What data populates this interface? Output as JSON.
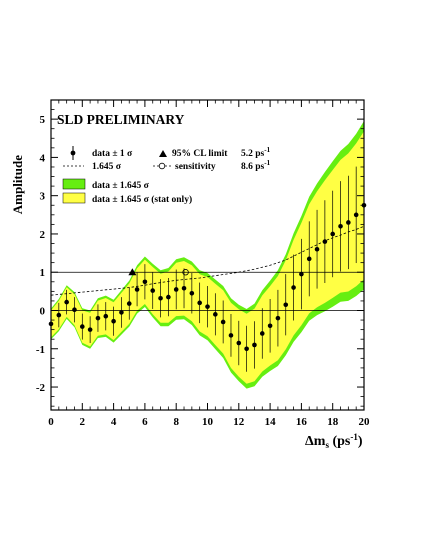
{
  "chart_data": {
    "type": "line",
    "title": "SLD PRELIMINARY",
    "xlabel": "Δm",
    "xlabel_sub": "s",
    "xlabel_unit": " (ps",
    "xlabel_sup": "-1",
    "xlabel_close": ")",
    "ylabel": "Amplitude",
    "xlim": [
      0,
      20
    ],
    "ylim": [
      -2.6,
      5.5
    ],
    "xticks": [
      0,
      2,
      4,
      6,
      8,
      10,
      12,
      14,
      16,
      18,
      20
    ],
    "yticks": [
      -2,
      -1,
      0,
      1,
      2,
      3,
      4,
      5
    ],
    "reference_lines": [
      0,
      1
    ],
    "legend": {
      "data_label": "data ± 1 σ",
      "dashed_label": "1.645 σ",
      "limit_label": "95% CL limit",
      "limit_value": "5.2 ps",
      "limit_sup": "-1",
      "sens_label": "sensitivity",
      "sens_value": "8.6 ps",
      "sens_sup": "-1",
      "band_full_label": "data ± 1.645 σ",
      "band_stat_label": "data ± 1.645 σ (stat only)"
    },
    "colors": {
      "band_full": "#66ee11",
      "band_stat": "#ffff44",
      "points": "#000000",
      "dashed": "#000000"
    },
    "data": {
      "x": [
        0,
        0.5,
        1,
        1.5,
        2,
        2.5,
        3,
        3.5,
        4,
        4.5,
        5,
        5.5,
        6,
        6.5,
        7,
        7.5,
        8,
        8.5,
        9,
        9.5,
        10,
        10.5,
        11,
        11.5,
        12,
        12.5,
        13,
        13.5,
        14,
        14.5,
        15,
        15.5,
        16,
        16.5,
        17,
        17.5,
        18,
        18.5,
        19,
        19.5,
        20
      ],
      "y": [
        -0.35,
        -0.12,
        0.22,
        0.02,
        -0.42,
        -0.5,
        -0.2,
        -0.15,
        -0.28,
        -0.05,
        0.18,
        0.55,
        0.75,
        0.52,
        0.32,
        0.35,
        0.55,
        0.58,
        0.45,
        0.2,
        0.1,
        -0.1,
        -0.3,
        -0.65,
        -0.85,
        -1.0,
        -0.9,
        -0.6,
        -0.4,
        -0.2,
        0.15,
        0.6,
        0.95,
        1.35,
        1.6,
        1.8,
        2.0,
        2.2,
        2.3,
        2.5,
        2.75
      ],
      "err": [
        0.3,
        0.32,
        0.32,
        0.33,
        0.34,
        0.35,
        0.36,
        0.37,
        0.38,
        0.4,
        0.42,
        0.44,
        0.46,
        0.48,
        0.5,
        0.5,
        0.52,
        0.52,
        0.53,
        0.53,
        0.54,
        0.55,
        0.56,
        0.56,
        0.58,
        0.6,
        0.62,
        0.66,
        0.7,
        0.74,
        0.8,
        0.86,
        0.92,
        0.98,
        1.03,
        1.08,
        1.13,
        1.18,
        1.22,
        1.26,
        1.3
      ],
      "sigma_1645": [
        0.4,
        0.42,
        0.44,
        0.46,
        0.48,
        0.5,
        0.52,
        0.54,
        0.56,
        0.58,
        0.6,
        0.63,
        0.66,
        0.7,
        0.73,
        0.76,
        0.79,
        0.81,
        0.83,
        0.85,
        0.88,
        0.91,
        0.94,
        0.97,
        1.0,
        1.04,
        1.08,
        1.13,
        1.18,
        1.25,
        1.32,
        1.42,
        1.52,
        1.62,
        1.72,
        1.82,
        1.9,
        1.97,
        2.05,
        2.12,
        2.2
      ]
    },
    "limit_marker": {
      "x": 5.2,
      "y": 1
    },
    "sensitivity_marker": {
      "x": 8.6,
      "y": 1
    }
  }
}
